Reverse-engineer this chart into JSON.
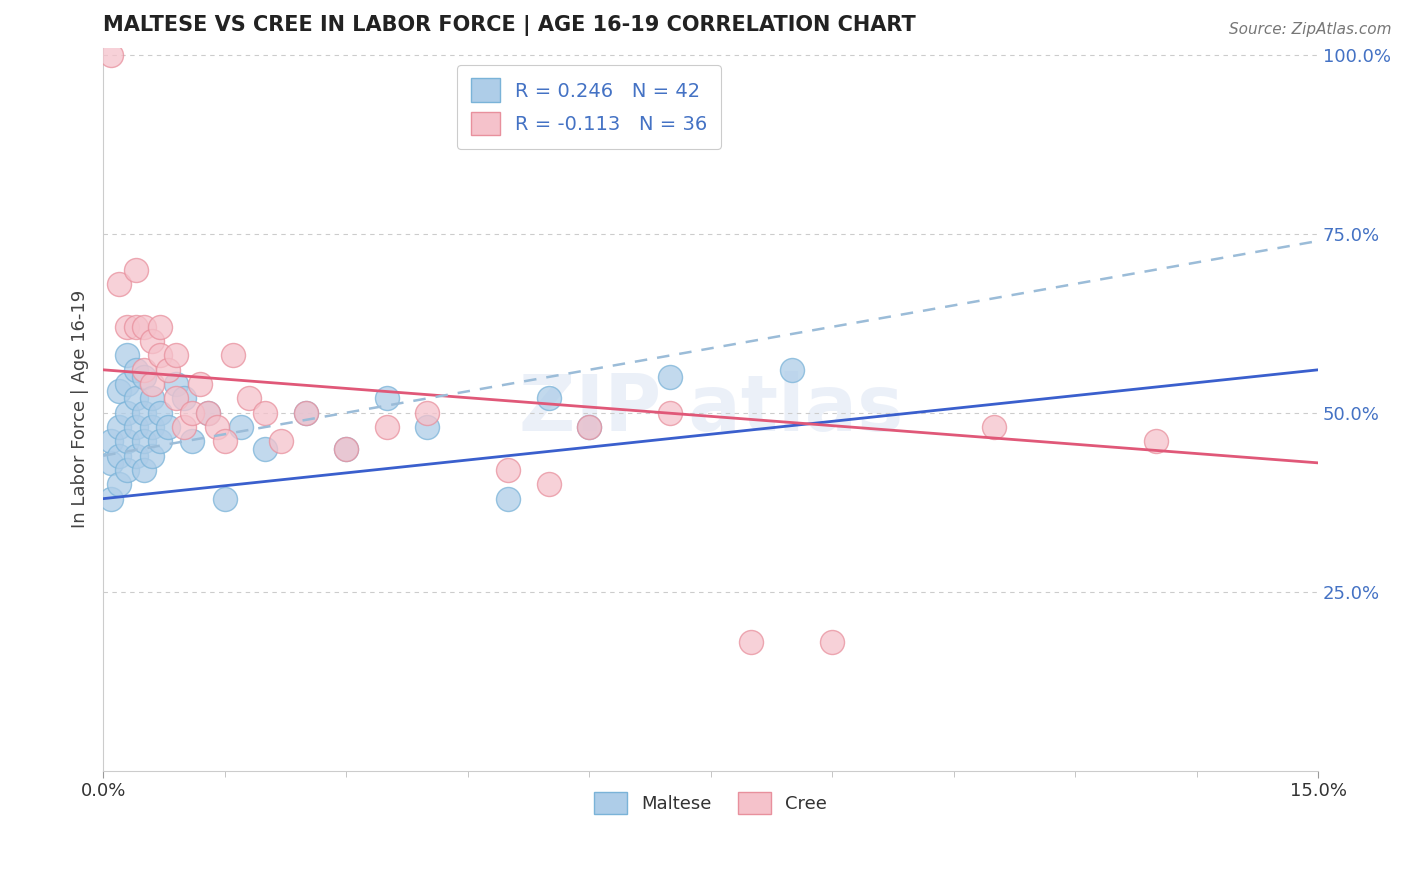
{
  "title": "MALTESE VS CREE IN LABOR FORCE | AGE 16-19 CORRELATION CHART",
  "source_text": "Source: ZipAtlas.com",
  "ylabel": "In Labor Force | Age 16-19",
  "x_min": 0.0,
  "x_max": 0.15,
  "y_min": 0.0,
  "y_max": 1.0,
  "maltese_R": 0.246,
  "maltese_N": 42,
  "cree_R": -0.113,
  "cree_N": 36,
  "maltese_marker_face": "#aecde8",
  "maltese_marker_edge": "#7ab3d8",
  "cree_marker_face": "#f5c2cb",
  "cree_marker_edge": "#e8909d",
  "trend_maltese_color": "#3a5fcd",
  "trend_cree_color": "#e05878",
  "trend_dashed_color": "#9bbcd8",
  "legend_maltese": "Maltese",
  "legend_cree": "Cree",
  "ytick_color": "#4472c4",
  "maltese_x": [
    0.001,
    0.001,
    0.001,
    0.002,
    0.002,
    0.002,
    0.002,
    0.003,
    0.003,
    0.003,
    0.003,
    0.003,
    0.004,
    0.004,
    0.004,
    0.004,
    0.005,
    0.005,
    0.005,
    0.005,
    0.006,
    0.006,
    0.006,
    0.007,
    0.007,
    0.008,
    0.009,
    0.01,
    0.011,
    0.013,
    0.015,
    0.017,
    0.02,
    0.025,
    0.03,
    0.035,
    0.04,
    0.05,
    0.055,
    0.06,
    0.07,
    0.085
  ],
  "maltese_y": [
    0.38,
    0.43,
    0.46,
    0.4,
    0.44,
    0.48,
    0.53,
    0.42,
    0.46,
    0.5,
    0.54,
    0.58,
    0.44,
    0.48,
    0.52,
    0.56,
    0.42,
    0.46,
    0.5,
    0.55,
    0.44,
    0.48,
    0.52,
    0.46,
    0.5,
    0.48,
    0.54,
    0.52,
    0.46,
    0.5,
    0.38,
    0.48,
    0.45,
    0.5,
    0.45,
    0.52,
    0.48,
    0.38,
    0.52,
    0.48,
    0.55,
    0.56
  ],
  "cree_x": [
    0.001,
    0.002,
    0.003,
    0.004,
    0.004,
    0.005,
    0.005,
    0.006,
    0.006,
    0.007,
    0.007,
    0.008,
    0.009,
    0.009,
    0.01,
    0.011,
    0.012,
    0.013,
    0.014,
    0.015,
    0.016,
    0.018,
    0.02,
    0.022,
    0.025,
    0.03,
    0.035,
    0.04,
    0.05,
    0.055,
    0.06,
    0.07,
    0.08,
    0.09,
    0.11,
    0.13
  ],
  "cree_y": [
    1.0,
    0.68,
    0.62,
    0.62,
    0.7,
    0.62,
    0.56,
    0.6,
    0.54,
    0.58,
    0.62,
    0.56,
    0.58,
    0.52,
    0.48,
    0.5,
    0.54,
    0.5,
    0.48,
    0.46,
    0.58,
    0.52,
    0.5,
    0.46,
    0.5,
    0.45,
    0.48,
    0.5,
    0.42,
    0.4,
    0.48,
    0.5,
    0.18,
    0.18,
    0.48,
    0.46
  ],
  "maltese_trend_y0": 0.38,
  "maltese_trend_y1": 0.56,
  "cree_trend_y0": 0.56,
  "cree_trend_y1": 0.43,
  "dashed_trend_y0": 0.44,
  "dashed_trend_y1": 0.74
}
